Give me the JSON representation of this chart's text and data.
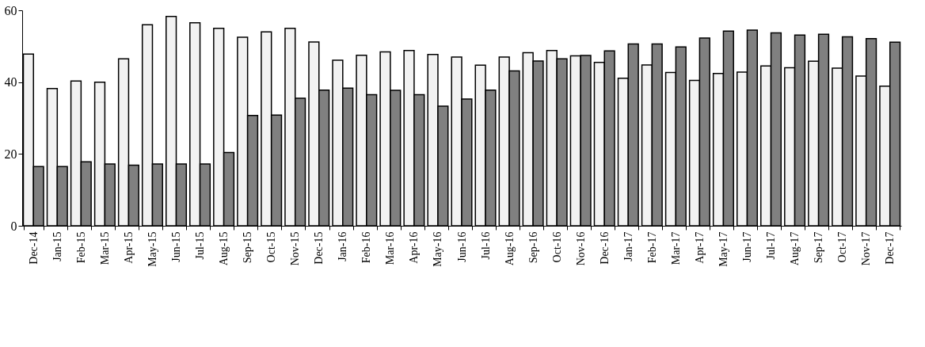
{
  "chart_data": {
    "type": "bar",
    "categories": [
      "Dec-14",
      "Jan-15",
      "Feb-15",
      "Mar-15",
      "Apr-15",
      "May-15",
      "Jun-15",
      "Jul-15",
      "Aug-15",
      "Sep-15",
      "Oct-15",
      "Nov-15",
      "Dec-15",
      "Jan-16",
      "Feb-16",
      "Mar-16",
      "Apr-16",
      "May-16",
      "Jun-16",
      "Jul-16",
      "Aug-16",
      "Sep-16",
      "Oct-16",
      "Nov-16",
      "Dec-16",
      "Jan-17",
      "Feb-17",
      "Mar-17",
      "Apr-17",
      "May-17",
      "Jun-17",
      "Jul-17",
      "Aug-17",
      "Sep-17",
      "Oct-17",
      "Nov-17",
      "Dec-17"
    ],
    "series": [
      {
        "color": "#f2f2f2",
        "values": [
          47.8,
          38.2,
          40.3,
          40,
          46.5,
          56,
          58.3,
          56.5,
          55,
          52.5,
          54,
          55,
          51.2,
          46.1,
          47.5,
          48.4,
          48.8,
          47.7,
          47,
          44.7,
          47,
          48.2,
          48.8,
          47.3,
          45.5,
          41.1,
          44.8,
          42.7,
          40.5,
          42.4,
          42.8,
          44.5,
          44,
          45.8,
          43.9,
          41.7,
          38.9
        ]
      },
      {
        "color": "#808080",
        "values": [
          16.5,
          16.5,
          17.8,
          17.2,
          16.9,
          17.2,
          17.2,
          17.2,
          20.4,
          30.7,
          30.8,
          35.5,
          37.8,
          38.3,
          36.5,
          37.7,
          36.5,
          33.3,
          35.3,
          37.8,
          43.1,
          45.9,
          46.5,
          47.4,
          48.7,
          50.6,
          50.6,
          49.8,
          52.3,
          54.2,
          54.5,
          53.7,
          53.1,
          53.3,
          52.6,
          52.1,
          51.1
        ]
      }
    ],
    "ylim": [
      0,
      60
    ],
    "yticks": [
      0,
      20,
      40,
      60
    ],
    "grid": false,
    "legend": false
  }
}
